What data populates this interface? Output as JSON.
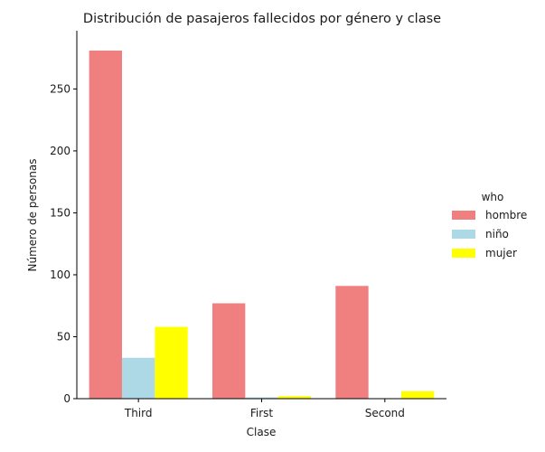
{
  "chart_data": {
    "type": "bar",
    "title": "Distribución de pasajeros fallecidos por género y clase",
    "xlabel": "Clase",
    "ylabel": "Número de personas",
    "categories": [
      "Third",
      "First",
      "Second"
    ],
    "ylim": [
      0,
      297
    ],
    "yticks": [
      0,
      50,
      100,
      150,
      200,
      250
    ],
    "grid": false,
    "legend": {
      "title": "who",
      "placement": "right"
    },
    "series": [
      {
        "name": "hombre",
        "values": [
          281,
          77,
          91
        ],
        "color": "#f08080"
      },
      {
        "name": "niño",
        "values": [
          33,
          1,
          0
        ],
        "color": "#add8e6"
      },
      {
        "name": "mujer",
        "values": [
          58,
          2,
          6
        ],
        "color": "#ffff00"
      }
    ]
  }
}
